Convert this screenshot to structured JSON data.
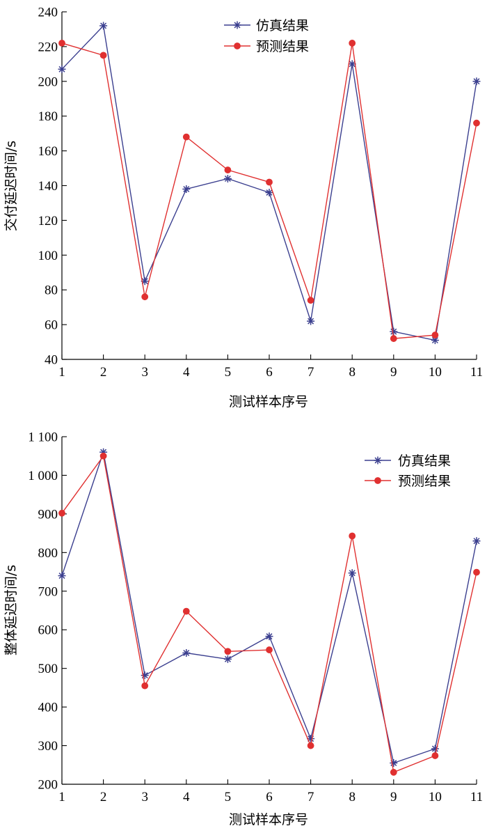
{
  "charts": [
    {
      "chart_data": {
        "type": "line",
        "title": "",
        "xlabel": "测试样本序号",
        "ylabel": "交付延迟时间/s",
        "x": [
          1,
          2,
          3,
          4,
          5,
          6,
          7,
          8,
          9,
          10,
          11
        ],
        "xlim": [
          1,
          11
        ],
        "ylim": [
          40,
          240
        ],
        "yticks": [
          40,
          60,
          80,
          100,
          120,
          140,
          160,
          180,
          200,
          220,
          240
        ],
        "ytick_labels": [
          "40",
          "60",
          "80",
          "100",
          "120",
          "140",
          "160",
          "180",
          "200",
          "220",
          "240"
        ],
        "grid": false,
        "legend": "top-center",
        "series": [
          {
            "name": "仿真结果",
            "marker": "asterisk",
            "color": "#3b3f8f",
            "values": [
              207,
              232,
              85,
              138,
              144,
              136,
              62,
              210,
              56,
              51,
              200
            ]
          },
          {
            "name": "预测结果",
            "marker": "dot",
            "color": "#e03030",
            "values": [
              222,
              215,
              76,
              168,
              149,
              142,
              74,
              222,
              52,
              54,
              176
            ]
          }
        ]
      }
    },
    {
      "chart_data": {
        "type": "line",
        "title": "",
        "xlabel": "测试样本序号",
        "ylabel": "整体延迟时间/s",
        "x": [
          1,
          2,
          3,
          4,
          5,
          6,
          7,
          8,
          9,
          10,
          11
        ],
        "xlim": [
          1,
          11
        ],
        "ylim": [
          200,
          1100
        ],
        "yticks": [
          200,
          300,
          400,
          500,
          600,
          700,
          800,
          900,
          1000,
          1100
        ],
        "ytick_labels": [
          "200",
          "300",
          "400",
          "500",
          "600",
          "700",
          "800",
          "900",
          "1 000",
          "1 100"
        ],
        "grid": false,
        "legend": "top-right",
        "series": [
          {
            "name": "仿真结果",
            "marker": "asterisk",
            "color": "#3b3f8f",
            "values": [
              740,
              1060,
              482,
              540,
              524,
              583,
              318,
              747,
              255,
              292,
              830
            ]
          },
          {
            "name": "预测结果",
            "marker": "dot",
            "color": "#e03030",
            "values": [
              902,
              1050,
              455,
              648,
              544,
              548,
              300,
              843,
              231,
              274,
              749
            ]
          }
        ]
      }
    }
  ]
}
